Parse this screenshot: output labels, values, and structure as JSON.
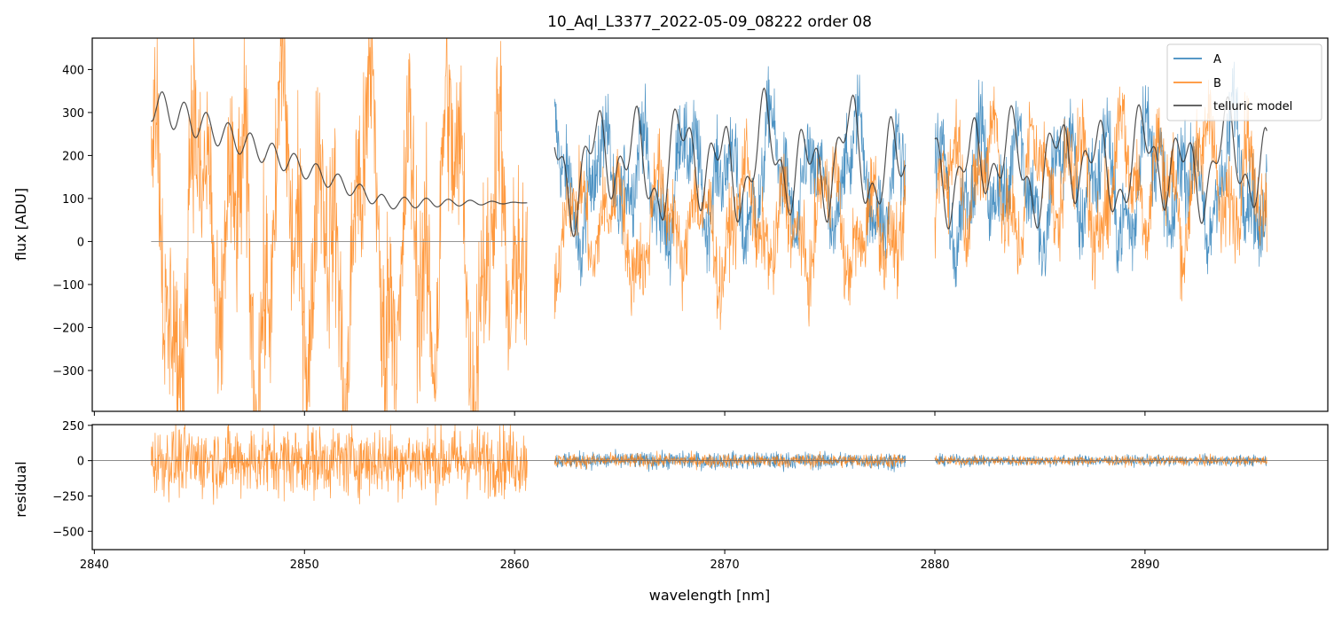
{
  "chart_data": [
    {
      "type": "line",
      "panel": "main",
      "title": "10_Aql_L3377_2022-05-09_08222  order 08",
      "xlabel": "",
      "ylabel": "flux [ADU]",
      "xlim": [
        2839.9,
        2898.7
      ],
      "ylim": [
        -395,
        473
      ],
      "yticks": [
        -300,
        -200,
        -100,
        0,
        100,
        200,
        300,
        400
      ],
      "ytick_labels": [
        "−300",
        "−200",
        "−100",
        "0",
        "100",
        "200",
        "300",
        "400"
      ],
      "grid": false,
      "legend_position": "top-right",
      "series": [
        {
          "name": "A",
          "color": "#1f77b4",
          "segments": [
            {
              "x": [
                2861.9,
                2878.6
              ],
              "center": 140,
              "amplitude": 170,
              "note_value_type": "noisy spectrum"
            },
            {
              "x": [
                2880.0,
                2895.8
              ],
              "center": 140,
              "amplitude": 180
            }
          ]
        },
        {
          "name": "B",
          "color": "#ff7f0e",
          "segments": [
            {
              "x": [
                2842.7,
                2860.6
              ],
              "center": 0,
              "amplitude": 420
            },
            {
              "x": [
                2861.9,
                2878.6
              ],
              "center": 40,
              "amplitude": 160
            },
            {
              "x": [
                2880.0,
                2895.8
              ],
              "center": 140,
              "amplitude": 180
            }
          ]
        },
        {
          "name": "telluric model",
          "color": "#333333",
          "segments": [
            {
              "x": [
                2842.7,
                2860.6
              ],
              "shape": "decaying",
              "start": 320,
              "end": 90
            },
            {
              "x": [
                2861.9,
                2878.6
              ],
              "shape": "lines",
              "high": 360,
              "low": 10
            },
            {
              "x": [
                2880.0,
                2895.8
              ],
              "shape": "lines",
              "high": 340,
              "low": 20
            }
          ]
        }
      ],
      "zero_line": {
        "x": [
          2842.7,
          2860.6
        ],
        "y": 0
      }
    },
    {
      "type": "line",
      "panel": "residual",
      "xlabel": "wavelength [nm]",
      "ylabel": "residual",
      "xlim": [
        2839.9,
        2898.7
      ],
      "ylim": [
        -630,
        255
      ],
      "yticks": [
        -500,
        -250,
        0,
        250
      ],
      "ytick_labels": [
        "−500",
        "−250",
        "0",
        "250"
      ],
      "xticks": [
        2840,
        2850,
        2860,
        2870,
        2880,
        2890
      ],
      "xtick_labels": [
        "2840",
        "2850",
        "2860",
        "2870",
        "2880",
        "2890"
      ],
      "grid": false,
      "series": [
        {
          "name": "A",
          "color": "#1f77b4",
          "segments": [
            {
              "x": [
                2861.9,
                2878.6
              ],
              "amplitude": 110
            },
            {
              "x": [
                2880.0,
                2895.8
              ],
              "amplitude": 70
            }
          ]
        },
        {
          "name": "B",
          "color": "#ff7f0e",
          "segments": [
            {
              "x": [
                2842.7,
                2860.6
              ],
              "amplitude": 450
            },
            {
              "x": [
                2861.9,
                2878.6
              ],
              "amplitude": 90
            },
            {
              "x": [
                2880.0,
                2895.8
              ],
              "amplitude": 60
            }
          ]
        }
      ],
      "zero_line": {
        "y": 0
      }
    }
  ]
}
